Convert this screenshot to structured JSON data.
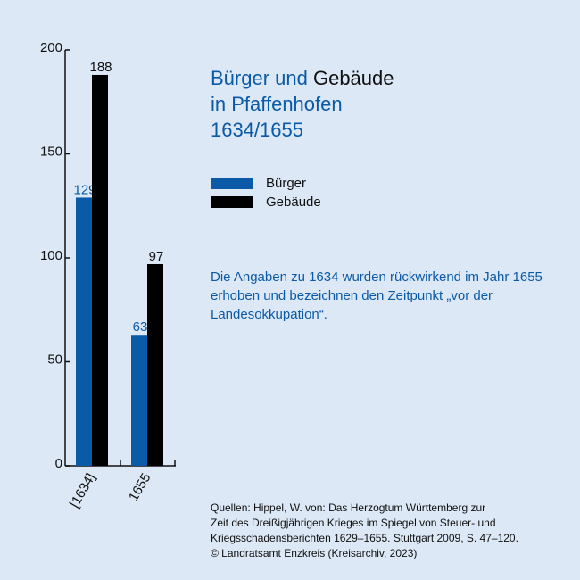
{
  "title": {
    "line1_blue": "Bürger und ",
    "line1_dark": "Gebäude",
    "line2": "in Pfaffenhofen",
    "line3": "1634/1655"
  },
  "legend": [
    {
      "label": "Bürger",
      "color": "#0a5aa8"
    },
    {
      "label": "Gebäude",
      "color": "#000000"
    }
  ],
  "note": "Die Angaben zu 1634 wurden rückwirkend im Jahr 1655 erhoben und bezeichnen den Zeitpunkt „vor der Landesokkupation“.",
  "sources": [
    "Quellen: Hippel, W. von: Das Herzogtum Württemberg zur",
    "Zeit des Dreißigjährigen Krieges im Spiegel von Steuer- und",
    "Kriegsschadensberichten 1629–1655. Stuttgart 2009, S. 47–120.",
    "© Landratsamt Enzkreis (Kreisarchiv, 2023)"
  ],
  "chart_data": {
    "type": "bar",
    "categories": [
      "[1634]",
      "1655"
    ],
    "series": [
      {
        "name": "Bürger",
        "values": [
          129,
          63
        ],
        "color": "#0a5aa8"
      },
      {
        "name": "Gebäude",
        "values": [
          188,
          97
        ],
        "color": "#000000"
      }
    ],
    "ylim": [
      0,
      200
    ],
    "yticks": [
      0,
      50,
      100,
      150,
      200
    ],
    "grid": false,
    "legend_position": "right"
  }
}
